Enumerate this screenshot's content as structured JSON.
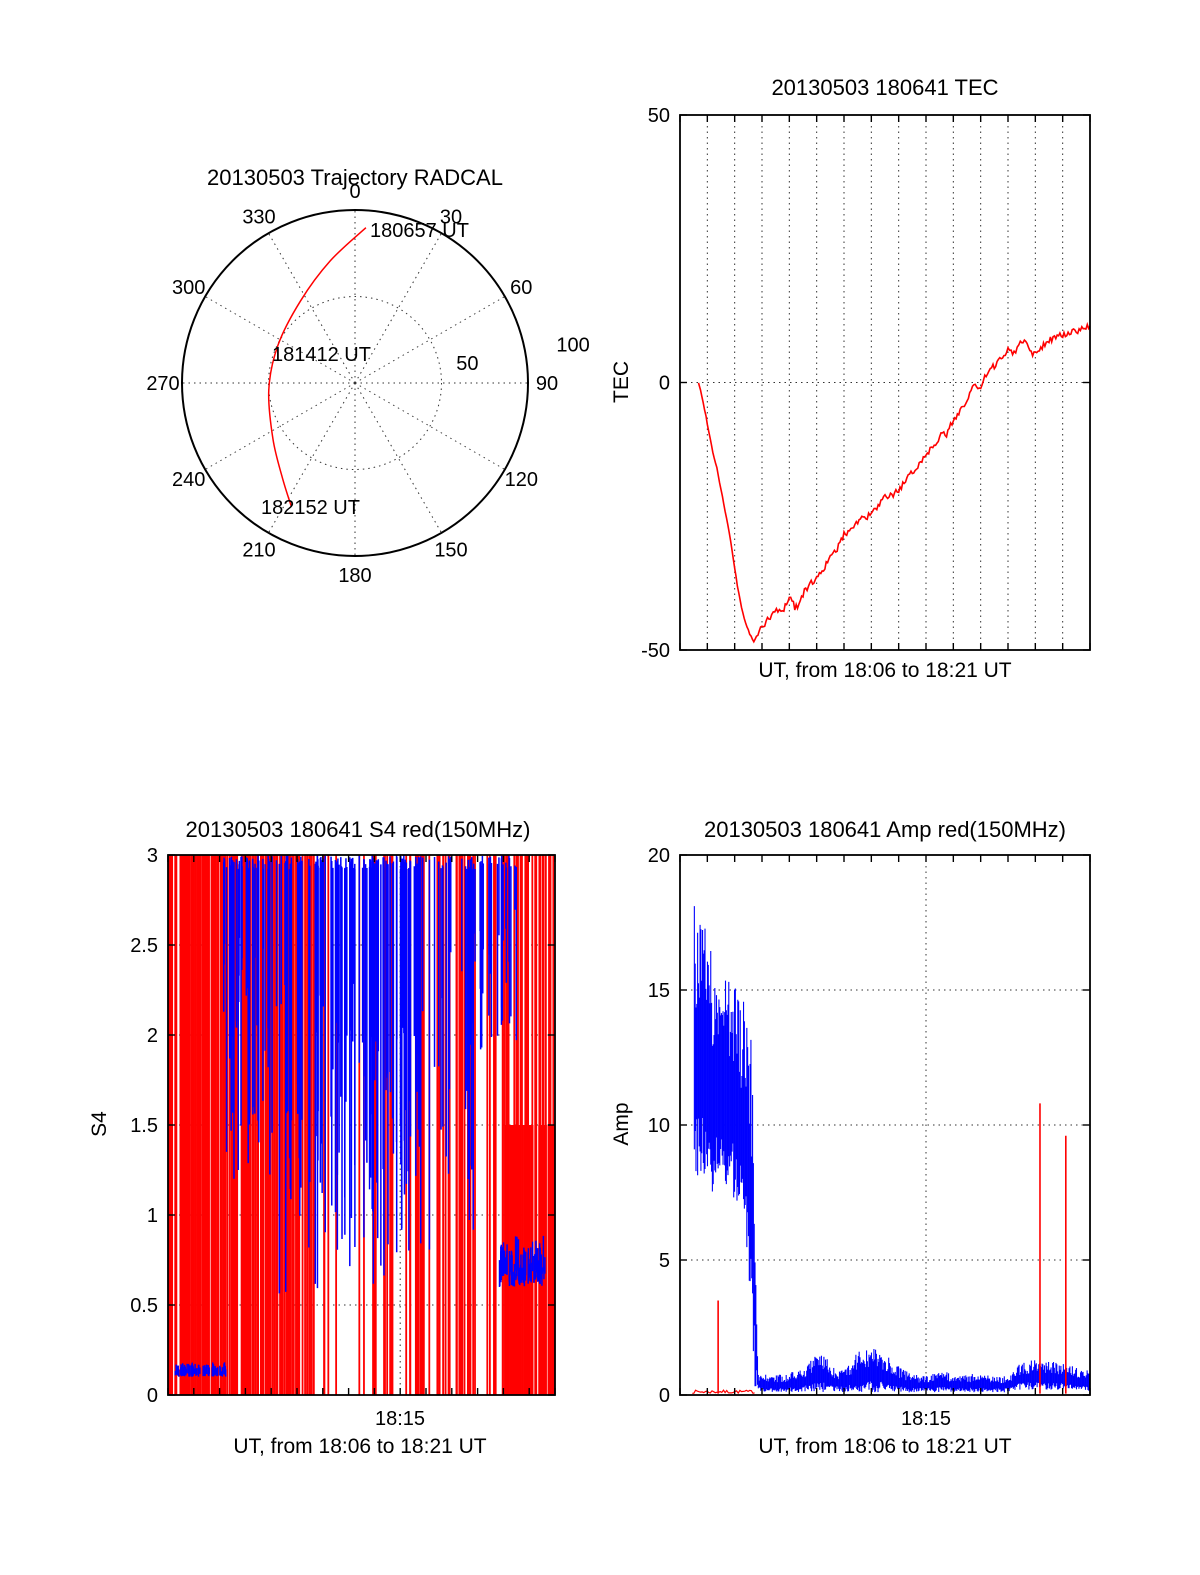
{
  "colors": {
    "data_red": "#ff0000",
    "data_blue": "#0000ff",
    "axis": "#000000",
    "grid": "#333333"
  },
  "chart_data": [
    {
      "type": "polar-trajectory",
      "title": "20130503 Trajectory RADCAL",
      "azimuth_ticks": [
        {
          "az": 0,
          "label": "0"
        },
        {
          "az": 30,
          "label": "30"
        },
        {
          "az": 60,
          "label": "60"
        },
        {
          "az": 90,
          "label": "90"
        },
        {
          "az": 120,
          "label": "120"
        },
        {
          "az": 150,
          "label": "150"
        },
        {
          "az": 180,
          "label": "180"
        },
        {
          "az": 210,
          "label": "210"
        },
        {
          "az": 240,
          "label": "240"
        },
        {
          "az": 270,
          "label": "270"
        },
        {
          "az": 300,
          "label": "300"
        },
        {
          "az": 330,
          "label": "330"
        }
      ],
      "radial_ticks": [
        {
          "label": "50",
          "az": 80,
          "r": 66
        },
        {
          "label": "100",
          "az": 80,
          "r": 128
        }
      ],
      "radial_grid": [
        50
      ],
      "radial_max": 100,
      "trajectory_color": "#ff0000",
      "trajectory_az_r": [
        [
          4,
          90
        ],
        [
          348.5,
          72
        ],
        [
          326.5,
          57
        ],
        [
          296,
          49.6
        ],
        [
          265.4,
          50
        ],
        [
          235.5,
          57.5
        ],
        [
          217,
          69.4
        ],
        [
          207.5,
          80
        ]
      ],
      "annotations": [
        {
          "text": "180657 UT"
        },
        {
          "text": "181412 UT"
        },
        {
          "text": "182152 UT"
        }
      ]
    },
    {
      "type": "line",
      "title": "20130503 180641 TEC",
      "ylabel": "TEC",
      "xlabel": "UT, from 18:06 to 18:21 UT",
      "ylim": [
        -50,
        50
      ],
      "yticks": [
        -50,
        0,
        50
      ],
      "ytick_labels": [
        "-50",
        "0",
        "50"
      ],
      "minutes": 15,
      "grid": {
        "vertical_every_minute": true,
        "horizontal_at": [
          0
        ]
      },
      "series": [
        {
          "name": "TEC",
          "color": "#ff0000",
          "points": [
            [
              0.045,
              0
            ],
            [
              0.05,
              -1.5
            ],
            [
              0.06,
              -5
            ],
            [
              0.07,
              -9
            ],
            [
              0.08,
              -13
            ],
            [
              0.09,
              -16
            ],
            [
              0.1,
              -20
            ],
            [
              0.11,
              -24
            ],
            [
              0.12,
              -28
            ],
            [
              0.13,
              -33
            ],
            [
              0.14,
              -38
            ],
            [
              0.15,
              -42
            ],
            [
              0.16,
              -45
            ],
            [
              0.17,
              -47
            ],
            [
              0.18,
              -48.5
            ],
            [
              0.19,
              -47
            ],
            [
              0.2,
              -45.5
            ],
            [
              0.22,
              -44
            ],
            [
              0.235,
              -42.5
            ],
            [
              0.25,
              -43
            ],
            [
              0.26,
              -41
            ],
            [
              0.27,
              -40
            ],
            [
              0.28,
              -42
            ],
            [
              0.29,
              -41.5
            ],
            [
              0.3,
              -39.5
            ],
            [
              0.32,
              -37.5
            ],
            [
              0.34,
              -36
            ],
            [
              0.36,
              -33.5
            ],
            [
              0.38,
              -31.5
            ],
            [
              0.4,
              -28.5
            ],
            [
              0.42,
              -27
            ],
            [
              0.44,
              -25.5
            ],
            [
              0.46,
              -25
            ],
            [
              0.48,
              -23.5
            ],
            [
              0.5,
              -21.5
            ],
            [
              0.52,
              -21
            ],
            [
              0.54,
              -19.5
            ],
            [
              0.56,
              -17.5
            ],
            [
              0.58,
              -15.5
            ],
            [
              0.6,
              -13.5
            ],
            [
              0.62,
              -11.5
            ],
            [
              0.64,
              -9.5
            ],
            [
              0.65,
              -10
            ],
            [
              0.66,
              -8
            ],
            [
              0.68,
              -5.5
            ],
            [
              0.7,
              -3.5
            ],
            [
              0.71,
              -1.5
            ],
            [
              0.72,
              -0.5
            ],
            [
              0.73,
              -1.5
            ],
            [
              0.74,
              0.5
            ],
            [
              0.75,
              1.5
            ],
            [
              0.77,
              3.5
            ],
            [
              0.79,
              5
            ],
            [
              0.8,
              6.5
            ],
            [
              0.815,
              5.5
            ],
            [
              0.83,
              7.5
            ],
            [
              0.84,
              8
            ],
            [
              0.85,
              6.5
            ],
            [
              0.86,
              5.5
            ],
            [
              0.87,
              6
            ],
            [
              0.88,
              6.5
            ],
            [
              0.9,
              8
            ],
            [
              0.92,
              8.5
            ],
            [
              0.94,
              9
            ],
            [
              0.96,
              9.5
            ],
            [
              0.98,
              10
            ],
            [
              1.0,
              10.5
            ]
          ]
        }
      ]
    },
    {
      "type": "scintillation-bars",
      "title": "20130503 180641 S4 red(150MHz)",
      "ylabel": "S4",
      "xlabel": "UT, from 18:06 to 18:21 UT",
      "ylim": [
        0,
        3
      ],
      "yticks": [
        0,
        0.5,
        1,
        1.5,
        2,
        2.5,
        3
      ],
      "ytick_labels": [
        "0",
        "0.5",
        "1",
        "1.5",
        "2",
        "2.5",
        "3"
      ],
      "xticks": [
        {
          "t": 0.6,
          "label": "18:15"
        }
      ],
      "minutes": 15,
      "grid": {
        "horizontal_at": [
          0.5,
          1,
          1.5,
          2,
          2.5
        ],
        "vertical_at_t": [
          0.6
        ]
      },
      "red": {
        "color": "#ff0000",
        "seed": 13,
        "uniform_count": 120,
        "left_range": [
          0,
          0.34
        ],
        "left_count": 100,
        "right_range": [
          0.62,
          1
        ],
        "right_count": 32,
        "bottom_band": {
          "x_range": [
            0.87,
            1
          ],
          "y_range": [
            0,
            1.5
          ],
          "count": 40
        }
      },
      "blue": {
        "color": "#0000ff",
        "seed": 41,
        "clusters": [
          {
            "x_range": [
              0.14,
              0.27
            ],
            "bottom_range": [
              1.2,
              2.6
            ],
            "count": 50
          },
          {
            "x_range": [
              0.28,
              0.66
            ],
            "bottom_range": [
              0.55,
              2.3
            ],
            "count": 120
          },
          {
            "x_range": [
              0.66,
              0.79
            ],
            "bottom_range": [
              0.8,
              2.5
            ],
            "count": 18
          },
          {
            "x_range": [
              0.78,
              0.9
            ],
            "bottom_range": [
              1.9,
              2.7
            ],
            "count": 30
          }
        ],
        "patches": [
          {
            "x_range": [
              0.855,
              0.975
            ],
            "y_range": [
              0.6,
              0.88
            ],
            "count": 90,
            "max_h": 0.18
          },
          {
            "x_range": [
              0.018,
              0.15
            ],
            "y_range": [
              0.1,
              0.17
            ],
            "count": 70,
            "max_h": 0.05
          }
        ]
      }
    },
    {
      "type": "envelope",
      "title": "20130503 180641 Amp red(150MHz)",
      "ylabel": "Amp",
      "xlabel": "UT, from 18:06 to 18:21 UT",
      "ylim": [
        0,
        20
      ],
      "yticks": [
        0,
        5,
        10,
        15,
        20
      ],
      "ytick_labels": [
        "0",
        "5",
        "10",
        "15",
        "20"
      ],
      "xticks": [
        {
          "t": 0.6,
          "label": "18:15"
        }
      ],
      "minutes": 15,
      "grid": {
        "horizontal_at": [
          5,
          10,
          15
        ],
        "vertical_at_t": [
          0.6
        ]
      },
      "blue": {
        "color": "#0000ff",
        "seed": 77,
        "envelope": [
          [
            0.035,
            8,
            18.3
          ],
          [
            0.05,
            8,
            17.6
          ],
          [
            0.065,
            7.8,
            17.2
          ],
          [
            0.08,
            7.5,
            16.8
          ],
          [
            0.095,
            7.8,
            16.2
          ],
          [
            0.11,
            7.8,
            15.8
          ],
          [
            0.125,
            7.5,
            15.3
          ],
          [
            0.14,
            7,
            15
          ],
          [
            0.155,
            6.8,
            14.6
          ],
          [
            0.17,
            4,
            14.2
          ],
          [
            0.178,
            1,
            13
          ],
          [
            0.183,
            0.3,
            6.5
          ],
          [
            0.19,
            0.1,
            0.9
          ],
          [
            0.22,
            0.1,
            0.7
          ],
          [
            0.26,
            0.1,
            0.8
          ],
          [
            0.3,
            0.1,
            1.0
          ],
          [
            0.33,
            0.1,
            1.5
          ],
          [
            0.35,
            0.1,
            1.6
          ],
          [
            0.37,
            0.1,
            1.1
          ],
          [
            0.4,
            0.1,
            0.9
          ],
          [
            0.43,
            0.1,
            1.6
          ],
          [
            0.46,
            0.1,
            1.8
          ],
          [
            0.49,
            0.1,
            1.7
          ],
          [
            0.52,
            0.1,
            1.2
          ],
          [
            0.56,
            0.1,
            0.8
          ],
          [
            0.6,
            0.1,
            0.7
          ],
          [
            0.64,
            0.1,
            0.9
          ],
          [
            0.68,
            0.1,
            0.7
          ],
          [
            0.72,
            0.1,
            0.8
          ],
          [
            0.76,
            0.1,
            0.7
          ],
          [
            0.8,
            0.1,
            0.7
          ],
          [
            0.83,
            0.2,
            1.2
          ],
          [
            0.86,
            0.2,
            1.3
          ],
          [
            0.89,
            0.2,
            1.3
          ],
          [
            0.92,
            0.2,
            1.2
          ],
          [
            0.95,
            0.2,
            1.1
          ],
          [
            0.98,
            0.1,
            1.0
          ],
          [
            1.0,
            0.1,
            0.9
          ]
        ]
      },
      "red": {
        "color": "#ff0000",
        "baseline": {
          "x_range": [
            0.03,
            0.185
          ],
          "level": 0.1
        },
        "spikes": [
          [
            0.093,
            3.5
          ],
          [
            0.878,
            10.8
          ],
          [
            0.941,
            9.6
          ]
        ]
      }
    }
  ]
}
